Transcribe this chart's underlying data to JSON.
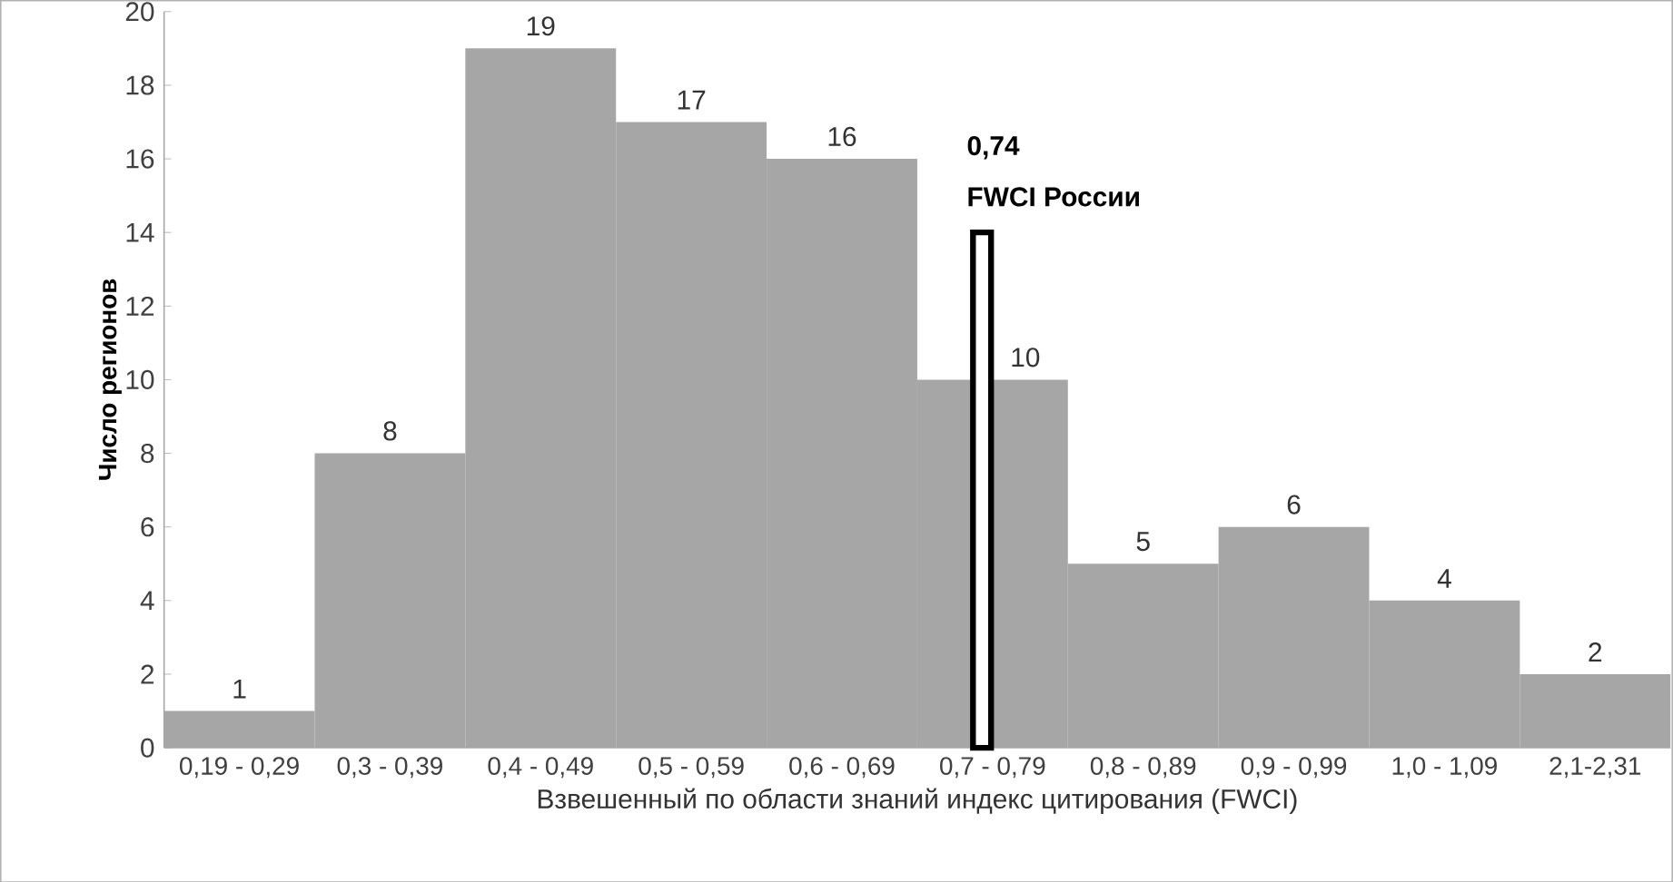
{
  "chart_data": {
    "type": "bar",
    "xlabel": "Взвешенный по области знаний индекс цитирования (FWCI)",
    "ylabel": "Число регионов",
    "categories": [
      "0,19 - 0,29",
      "0,3 - 0,39",
      "0,4 - 0,49",
      "0,5 - 0,59",
      "0,6 - 0,69",
      "0,7 - 0,79",
      "0,8 - 0,89",
      "0,9 - 0,99",
      "1,0 - 1,09",
      "2,1-2,31"
    ],
    "series": [
      {
        "color": "#a6a6a6",
        "values": [
          1,
          8,
          19,
          17,
          16,
          10,
          5,
          6,
          4,
          2
        ],
        "value_labels": [
          "1",
          "8",
          "19",
          "17",
          "16",
          "10",
          "5",
          "6",
          "4",
          "2"
        ]
      },
      {
        "color": "#ffffff",
        "values": [
          null,
          null,
          null,
          null,
          null,
          14,
          null,
          null,
          null,
          null
        ]
      }
    ],
    "ylim": [
      0,
      20
    ],
    "yticks": [
      0,
      2,
      4,
      6,
      8,
      10,
      12,
      14,
      16,
      18,
      20
    ],
    "annotations": [
      {
        "text": "0,74",
        "x": "0,7 - 0,79",
        "y": 14
      },
      {
        "text": "FWCI России",
        "x": "0,7 - 0,79",
        "y": 14
      }
    ]
  }
}
